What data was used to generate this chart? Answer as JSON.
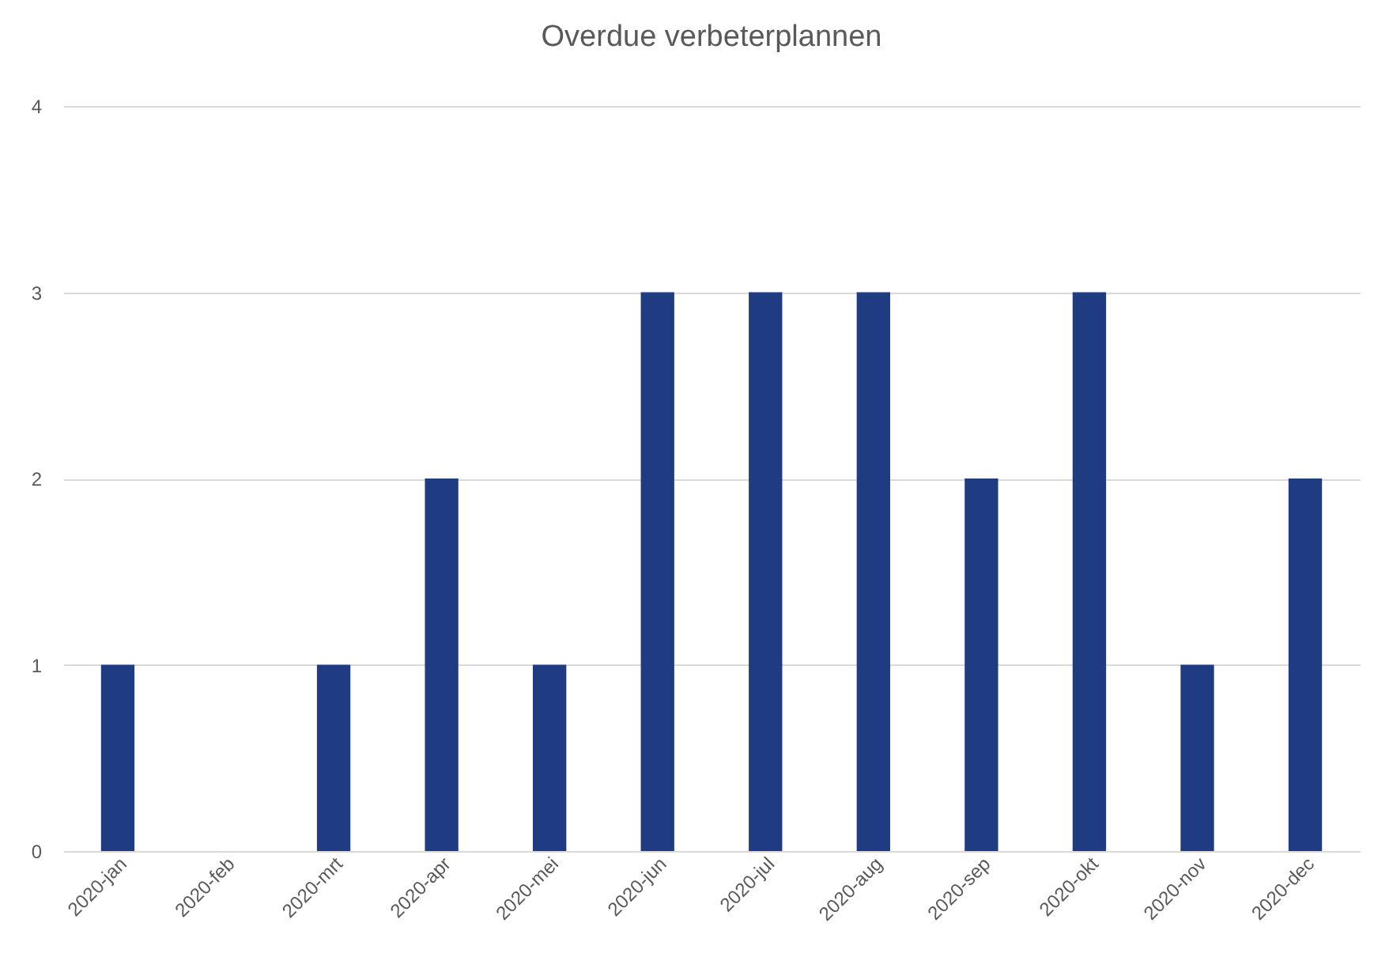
{
  "chart_data": {
    "type": "bar",
    "title": "Overdue verbeterplannen",
    "categories": [
      "2020-jan",
      "2020-feb",
      "2020-mrt",
      "2020-apr",
      "2020-mei",
      "2020-jun",
      "2020-jul",
      "2020-aug",
      "2020-sep",
      "2020-okt",
      "2020-nov",
      "2020-dec"
    ],
    "values": [
      1,
      0,
      1,
      2,
      1,
      3,
      3,
      3,
      2,
      3,
      1,
      2
    ],
    "color": "#1f3b82",
    "ylim": [
      0,
      4
    ],
    "yticks": [
      0,
      1,
      2,
      3,
      4
    ],
    "grid": "y"
  }
}
